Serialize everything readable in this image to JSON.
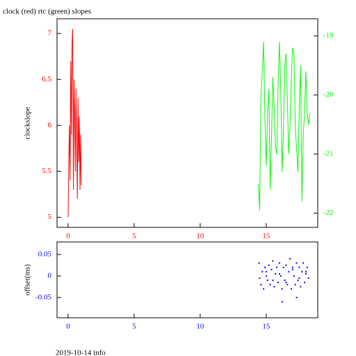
{
  "chart_data": [
    {
      "type": "line",
      "title": "clock (red) rtc (green) slopes",
      "ylabel": "clockslope",
      "xlim": [
        -0.84,
        18.9
      ],
      "xticks": [
        0,
        5,
        10,
        15
      ],
      "xcolor": "#ff0000",
      "ylim": [
        4.89,
        7.16
      ],
      "yticks": [
        5,
        5.5,
        6,
        6.5,
        7
      ],
      "ycolor": "#ff0000",
      "y2lim": [
        -22.24,
        -18.71
      ],
      "y2ticks": [
        -22,
        -21,
        -20,
        -19
      ],
      "y2color": "#00ff00",
      "series": [
        {
          "color": "#ff0000",
          "x": [
            0,
            0.05,
            0.1,
            0.15,
            0.2,
            0.25,
            0.3,
            0.35,
            0.4,
            0.45,
            0.5,
            0.55,
            0.6,
            0.65,
            0.7,
            0.75,
            0.8,
            0.85,
            0.9,
            0.95,
            1.0
          ],
          "values": [
            5.0,
            5.6,
            6.0,
            5.4,
            6.7,
            5.9,
            6.9,
            7.05,
            5.3,
            6.5,
            6.1,
            5.5,
            6.4,
            5.8,
            5.2,
            6.3,
            5.6,
            6.1,
            5.3,
            5.9,
            5.35
          ]
        },
        {
          "color": "#00ff00",
          "axis": "y2",
          "x": [
            14.4,
            14.5,
            14.6,
            14.7,
            14.8,
            14.9,
            15.0,
            15.1,
            15.2,
            15.3,
            15.4,
            15.5,
            15.6,
            15.7,
            15.8,
            15.9,
            16.0,
            16.1,
            16.2,
            16.3,
            16.4,
            16.5,
            16.6,
            16.7,
            16.8,
            16.9,
            17.0,
            17.1,
            17.2,
            17.3,
            17.4,
            17.5,
            17.6,
            17.7,
            17.8,
            17.9,
            18.0,
            18.1,
            18.2,
            18.3
          ],
          "values": [
            -21.5,
            -21.95,
            -20.0,
            -19.6,
            -19.1,
            -20.4,
            -21.2,
            -20.3,
            -19.9,
            -21.6,
            -20.7,
            -19.7,
            -20.2,
            -20.9,
            -21.0,
            -19.8,
            -19.1,
            -19.9,
            -21.3,
            -20.6,
            -19.5,
            -19.3,
            -20.1,
            -21.0,
            -20.5,
            -19.7,
            -19.2,
            -19.3,
            -20.6,
            -20.9,
            -21.3,
            -20.2,
            -19.5,
            -21.8,
            -20.7,
            -20.3,
            -19.6,
            -20.3,
            -20.5,
            -20.3
          ]
        }
      ]
    },
    {
      "type": "scatter",
      "ylabel": "offset(ms)",
      "xlim": [
        -0.84,
        18.9
      ],
      "xticks": [
        0,
        5,
        10,
        15
      ],
      "xcolor": "#0000ff",
      "ylim": [
        -0.097,
        0.079
      ],
      "yticks": [
        -0.05,
        0,
        0.05
      ],
      "ycolor": "#0000ff",
      "color": "#0000ff",
      "x": [
        14.45,
        14.6,
        14.7,
        14.8,
        14.9,
        15.0,
        15.1,
        15.2,
        15.3,
        15.4,
        15.5,
        15.6,
        15.7,
        15.8,
        15.9,
        16.0,
        16.1,
        16.2,
        16.3,
        16.4,
        16.5,
        16.6,
        16.7,
        16.8,
        16.9,
        17.0,
        17.1,
        17.2,
        17.3,
        17.4,
        17.5,
        17.6,
        17.7,
        17.8,
        17.9,
        18.0,
        18.1,
        18.2,
        14.5,
        15.0,
        15.5,
        16.0,
        16.5,
        17.0,
        17.5,
        18.0,
        16.2,
        17.3
      ],
      "values": [
        0.03,
        -0.02,
        0.01,
        -0.03,
        0.02,
        0.0,
        -0.01,
        0.025,
        -0.02,
        0.015,
        0.035,
        -0.025,
        0.005,
        0.02,
        -0.015,
        0.03,
        0.0,
        -0.03,
        0.02,
        -0.01,
        0.025,
        -0.02,
        0.01,
        0.04,
        -0.03,
        0.015,
        0.0,
        -0.02,
        0.03,
        -0.01,
        0.02,
        -0.025,
        0.01,
        0.03,
        -0.015,
        0.005,
        0.02,
        -0.005,
        -0.005,
        0.01,
        -0.01,
        0.005,
        -0.015,
        0.02,
        -0.005,
        0.01,
        -0.06,
        -0.05
      ]
    }
  ],
  "footer": "2019-10-14 info"
}
